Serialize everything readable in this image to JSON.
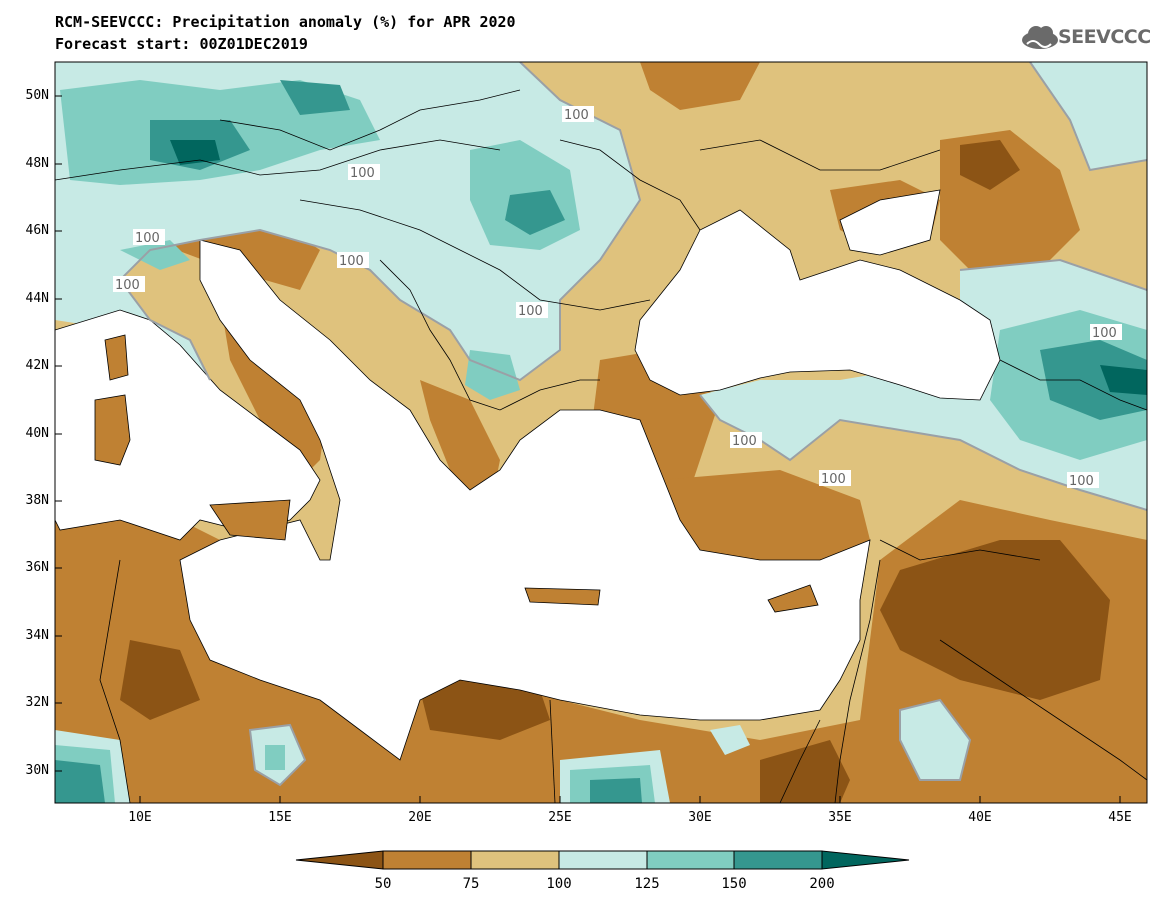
{
  "title": "RCM-SEEVCCC: Precipitation anomaly (%) for APR 2020",
  "subtitle": "Forecast start: 00Z01DEC2019",
  "logo_text": "SEEVCCC",
  "latitude_labels": [
    "50N",
    "48N",
    "46N",
    "44N",
    "42N",
    "40N",
    "38N",
    "36N",
    "34N",
    "32N",
    "30N"
  ],
  "longitude_labels": [
    "10E",
    "15E",
    "20E",
    "25E",
    "30E",
    "35E",
    "40E",
    "45E"
  ],
  "contour_labels": [
    "100",
    "100",
    "100",
    "100",
    "100",
    "100",
    "100",
    "100",
    "100",
    "100"
  ],
  "colorbar": {
    "ticks": [
      "50",
      "75",
      "100",
      "125",
      "150",
      "200"
    ],
    "colors": [
      "#8c5415",
      "#bf8133",
      "#dfc27d",
      "#c7eae5",
      "#80cdc1",
      "#35978f",
      "#01665e"
    ]
  }
}
